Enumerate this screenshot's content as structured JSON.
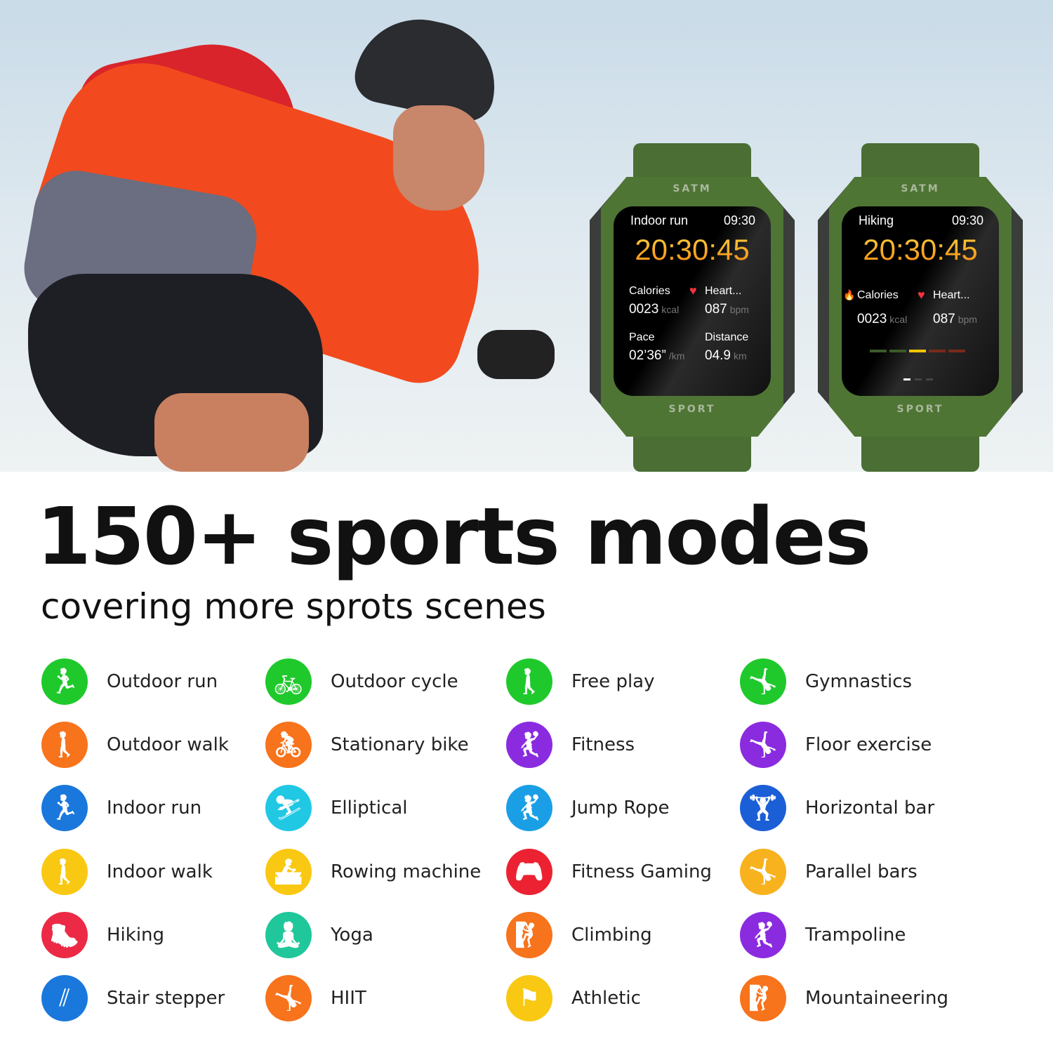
{
  "hero": {
    "watches": [
      {
        "brand_top": "SATM",
        "brand_bottom": "SPORT",
        "mode": "Indoor run",
        "time": "09:30",
        "timer": "20:30:45",
        "stats": [
          {
            "label": "Calories",
            "value": "0023",
            "unit": "kcal"
          },
          {
            "label": "Heart...",
            "value": "087",
            "unit": "bpm"
          },
          {
            "label": "Pace",
            "value": "02’36”",
            "unit": "/km"
          },
          {
            "label": "Distance",
            "value": "04.9",
            "unit": "km"
          }
        ]
      },
      {
        "brand_top": "SATM",
        "brand_bottom": "SPORT",
        "mode": "Hiking",
        "time": "09:30",
        "timer": "20:30:45",
        "stats": [
          {
            "label": "Calories",
            "value": "0023",
            "unit": "kcal"
          },
          {
            "label": "Heart...",
            "value": "087",
            "unit": "bpm"
          }
        ]
      }
    ]
  },
  "title": "150+ sports modes",
  "subtitle": "covering more sprots scenes",
  "columns": [
    [
      {
        "label": "Outdoor run",
        "color": "#1fc92c",
        "icon": "run-icon",
        "glyph": "🏃"
      },
      {
        "label": "Outdoor walk",
        "color": "#f7731c",
        "icon": "walk-icon",
        "glyph": "🚶"
      },
      {
        "label": "Indoor run",
        "color": "#1a78dc",
        "icon": "treadmill-icon",
        "glyph": "🏃"
      },
      {
        "label": "Indoor walk",
        "color": "#f9c812",
        "icon": "walk-icon",
        "glyph": "🚶"
      },
      {
        "label": "Hiking",
        "color": "#ec2a46",
        "icon": "hiking-icon",
        "glyph": "🥾"
      },
      {
        "label": "Stair stepper",
        "color": "#1a78dc",
        "icon": "stair-icon",
        "glyph": "⫽"
      }
    ],
    [
      {
        "label": "Outdoor cycle",
        "color": "#1fc92c",
        "icon": "bike-icon",
        "glyph": "🚲"
      },
      {
        "label": "Stationary bike",
        "color": "#f7731c",
        "icon": "stationary-bike-icon",
        "glyph": "🚴"
      },
      {
        "label": "Elliptical",
        "color": "#20c8e4",
        "icon": "elliptical-icon",
        "glyph": "⛷"
      },
      {
        "label": "Rowing machine",
        "color": "#f9c812",
        "icon": "rowing-icon",
        "glyph": "🚣"
      },
      {
        "label": "Yoga",
        "color": "#20c79a",
        "icon": "yoga-icon",
        "glyph": "🧘"
      },
      {
        "label": "HIIT",
        "color": "#f7731c",
        "icon": "hiit-icon",
        "glyph": "🤸"
      }
    ],
    [
      {
        "label": "Free play",
        "color": "#1fc92c",
        "icon": "free-play-icon",
        "glyph": "🚶"
      },
      {
        "label": "Fitness",
        "color": "#8b2be0",
        "icon": "fitness-icon",
        "glyph": "🤾"
      },
      {
        "label": "Jump Rope",
        "color": "#1a9fe6",
        "icon": "jump-rope-icon",
        "glyph": "🤾"
      },
      {
        "label": "Fitness Gaming",
        "color": "#ec2233",
        "icon": "gamepad-icon",
        "glyph": "🎮"
      },
      {
        "label": "Climbing",
        "color": "#f7731c",
        "icon": "climbing-icon",
        "glyph": "🧗"
      },
      {
        "label": "Athletic",
        "color": "#f9c812",
        "icon": "flag-icon",
        "glyph": "⚑"
      }
    ],
    [
      {
        "label": "Gymnastics",
        "color": "#1fc92c",
        "icon": "gymnastics-icon",
        "glyph": "🤸"
      },
      {
        "label": "Floor exercise",
        "color": "#8b2be0",
        "icon": "floor-exercise-icon",
        "glyph": "🤸"
      },
      {
        "label": "Horizontal bar",
        "color": "#1a5fd6",
        "icon": "horizontal-bar-icon",
        "glyph": "🏋"
      },
      {
        "label": "Parallel bars",
        "color": "#f7b21e",
        "icon": "parallel-bars-icon",
        "glyph": "🤸"
      },
      {
        "label": "Trampoline",
        "color": "#8b2be0",
        "icon": "trampoline-icon",
        "glyph": "🤾"
      },
      {
        "label": "Mountaineering",
        "color": "#f7731c",
        "icon": "mountaineering-icon",
        "glyph": "🧗"
      }
    ]
  ]
}
